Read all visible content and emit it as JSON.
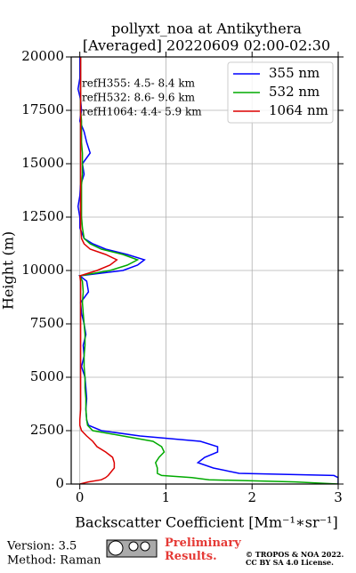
{
  "chart_data": {
    "type": "line",
    "title": [
      "pollyxt_noa at Antikythera",
      "[Averaged] 20220609 02:00-02:30"
    ],
    "xlabel": "Backscatter Coefficient [Mm⁻¹∗sr⁻¹]",
    "ylabel": "Height (m)",
    "xlim": [
      -0.1,
      3
    ],
    "xticks": [
      0,
      1,
      2,
      3
    ],
    "ylim": [
      0,
      20000
    ],
    "yticks": [
      0,
      2500,
      5000,
      7500,
      10000,
      12500,
      15000,
      17500,
      20000
    ],
    "grid": true,
    "legend": "upper-right",
    "annotations": [
      "refH355:  4.5- 8.4 km",
      "refH532:  8.6- 9.6 km",
      "refH1064:  4.4- 5.9 km"
    ],
    "heights": [
      0,
      100,
      200,
      300,
      400,
      500,
      750,
      1000,
      1250,
      1500,
      1750,
      2000,
      2250,
      2500,
      2750,
      3000,
      3500,
      4000,
      4500,
      5000,
      5500,
      6000,
      6500,
      7000,
      7500,
      8000,
      8500,
      9000,
      9500,
      9750,
      10000,
      10250,
      10500,
      10750,
      11000,
      11250,
      11500,
      12000,
      12500,
      13000,
      13500,
      14000,
      14500,
      15000,
      15500,
      16000,
      16500,
      17000,
      17500,
      18000,
      18500,
      19000,
      19500,
      20000
    ],
    "series": [
      {
        "name": "355 nm",
        "color": "#0000ff",
        "values": [
          3.0,
          3.0,
          3.0,
          3.0,
          2.95,
          1.85,
          1.55,
          1.37,
          1.45,
          1.6,
          1.6,
          1.4,
          0.7,
          0.25,
          0.1,
          0.08,
          0.07,
          0.08,
          0.07,
          0.06,
          0.02,
          0.05,
          0.04,
          0.07,
          0.05,
          0.02,
          0.01,
          0.1,
          0.08,
          0.0,
          0.5,
          0.67,
          0.75,
          0.55,
          0.3,
          0.15,
          0.05,
          0.0,
          0.0,
          -0.02,
          0.0,
          0.01,
          0.05,
          0.03,
          0.12,
          0.08,
          0.05,
          0.0,
          0.02,
          0.01,
          -0.02,
          0.0,
          0.0,
          0.0
        ]
      },
      {
        "name": "532 nm",
        "color": "#00aa00",
        "values": [
          3.0,
          2.5,
          1.5,
          1.3,
          0.95,
          0.9,
          0.9,
          0.88,
          0.92,
          0.98,
          0.95,
          0.85,
          0.5,
          0.15,
          0.09,
          0.08,
          0.07,
          0.07,
          0.06,
          0.06,
          0.05,
          0.05,
          0.06,
          0.06,
          0.05,
          0.04,
          0.03,
          0.04,
          0.03,
          0.0,
          0.35,
          0.55,
          0.67,
          0.5,
          0.25,
          0.12,
          0.05,
          0.03,
          0.02,
          0.02,
          0.02,
          0.02,
          0.03,
          0.03,
          0.03,
          0.02,
          0.02,
          0.02,
          0.01,
          0.01,
          0.01,
          0.01,
          0.01,
          0.01
        ]
      },
      {
        "name": "1064 nm",
        "color": "#dd0000",
        "values": [
          0.0,
          0.1,
          0.25,
          0.3,
          0.33,
          0.35,
          0.4,
          0.4,
          0.38,
          0.3,
          0.2,
          0.15,
          0.08,
          0.02,
          0.0,
          0.0,
          0.01,
          0.01,
          0.01,
          0.01,
          0.01,
          0.01,
          0.01,
          0.01,
          0.01,
          0.01,
          0.01,
          0.01,
          0.01,
          0.0,
          0.2,
          0.35,
          0.43,
          0.3,
          0.12,
          0.05,
          0.02,
          0.01,
          0.01,
          0.01,
          0.01,
          0.01,
          0.01,
          0.01,
          0.01,
          0.01,
          0.01,
          0.01,
          0.01,
          0.01,
          0.01,
          0.01,
          0.01,
          0.01
        ]
      }
    ],
    "footer": {
      "version": "Version: 3.5",
      "method": "Method: Raman",
      "status": "Preliminary Results.",
      "copyright": [
        "© TROPOS & NOA 2022.",
        "CC BY SA 4.0 License."
      ]
    }
  }
}
